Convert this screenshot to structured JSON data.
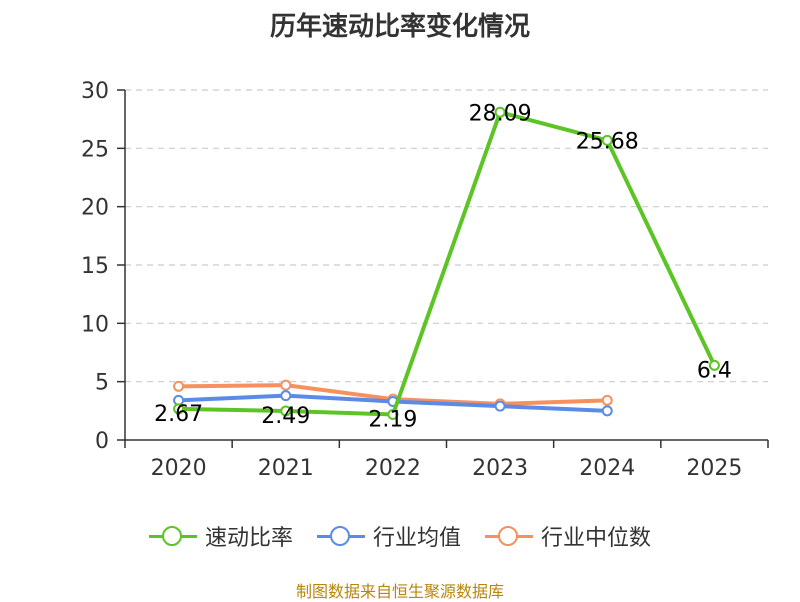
{
  "chart_data": {
    "type": "line",
    "title": "历年速动比率变化情况",
    "categories": [
      "2020",
      "2021",
      "2022",
      "2023",
      "2024",
      "2025"
    ],
    "ylim": [
      0,
      30
    ],
    "yticks": [
      0,
      5,
      10,
      15,
      20,
      25,
      30
    ],
    "grid": true,
    "legend_position": "bottom",
    "series": [
      {
        "name": "速动比率",
        "color": "#5cc425",
        "values": [
          2.67,
          2.49,
          2.19,
          28.09,
          25.68,
          6.4
        ],
        "labels": [
          "2.67",
          "2.49",
          "2.19",
          "28.09",
          "25.68",
          "6.4"
        ]
      },
      {
        "name": "行业均值",
        "color": "#5b8be6",
        "values": [
          3.4,
          3.8,
          3.3,
          2.9,
          2.5,
          null
        ]
      },
      {
        "name": "行业中位数",
        "color": "#f59160",
        "values": [
          4.6,
          4.7,
          3.5,
          3.1,
          3.4,
          null
        ]
      }
    ]
  },
  "source": "制图数据来自恒生聚源数据库"
}
